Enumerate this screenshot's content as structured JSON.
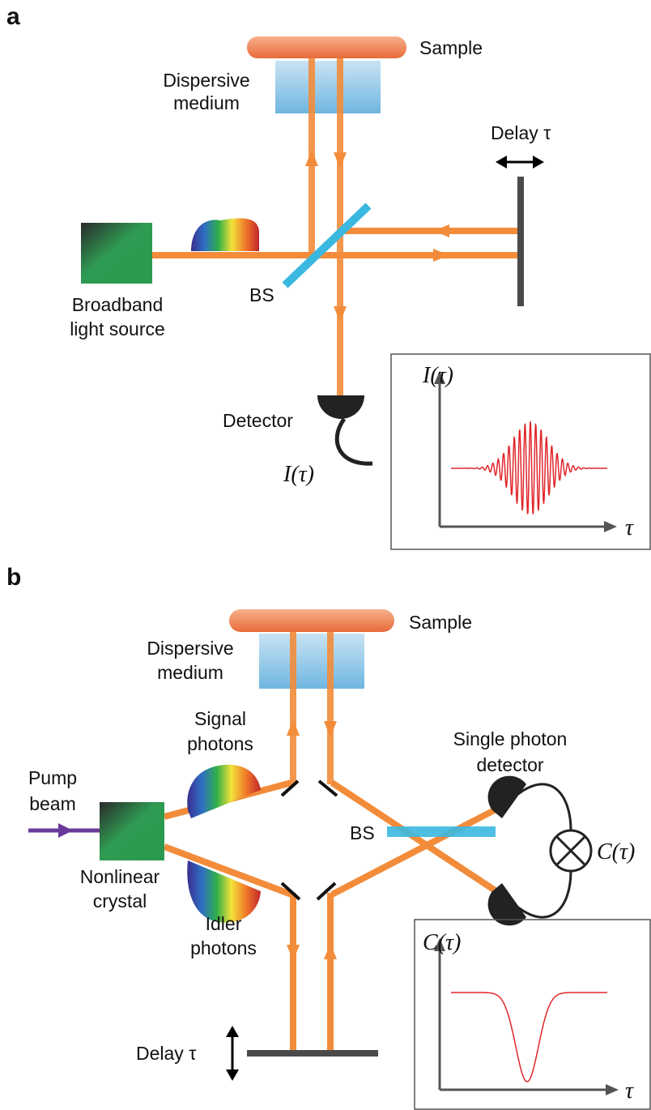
{
  "panels": [
    {
      "label": "a",
      "sample": "Sample",
      "medium": [
        "Dispersive",
        "medium"
      ],
      "delay": "Delay τ",
      "bs": "BS",
      "source": [
        "Broadband",
        "light source"
      ],
      "detector": "Detector",
      "output": "I(τ)",
      "inset": {
        "y_label": "I(τ)",
        "x_label": "τ"
      }
    },
    {
      "label": "b",
      "sample": "Sample",
      "medium": [
        "Dispersive",
        "medium"
      ],
      "signal": [
        "Signal",
        "photons"
      ],
      "pump": [
        "Pump",
        "beam"
      ],
      "crystal": [
        "Nonlinear",
        "crystal"
      ],
      "idler": [
        "Idler",
        "photons"
      ],
      "detector": [
        "Single photon",
        "detector"
      ],
      "bs": "BS",
      "output": "C(τ)",
      "delay": "Delay τ",
      "inset": {
        "y_label": "C(τ)",
        "x_label": "τ"
      }
    }
  ]
}
